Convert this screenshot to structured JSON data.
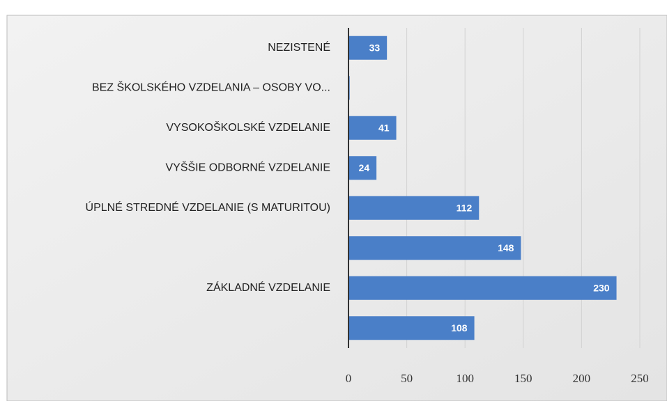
{
  "chart_data": {
    "type": "bar",
    "orientation": "horizontal",
    "categories": [
      "NEZISTENÉ",
      "BEZ ŠKOLSKÉHO VZDELANIA – OSOBY VO...",
      "VYSOKOŠKOLSKÉ VZDELANIE",
      "VYŠŠIE ODBORNÉ VZDELANIE",
      "ÚPLNÉ STREDNÉ VZDELANIE (S MATURITOU)",
      null,
      "ZÁKLADNÉ VZDELANIE",
      null
    ],
    "values": [
      33,
      1,
      41,
      24,
      112,
      148,
      230,
      108
    ],
    "color": "#4a7fc8",
    "xlim": [
      0,
      250
    ],
    "xticks": [
      0,
      50,
      100,
      150,
      200,
      250
    ],
    "grid": true
  }
}
